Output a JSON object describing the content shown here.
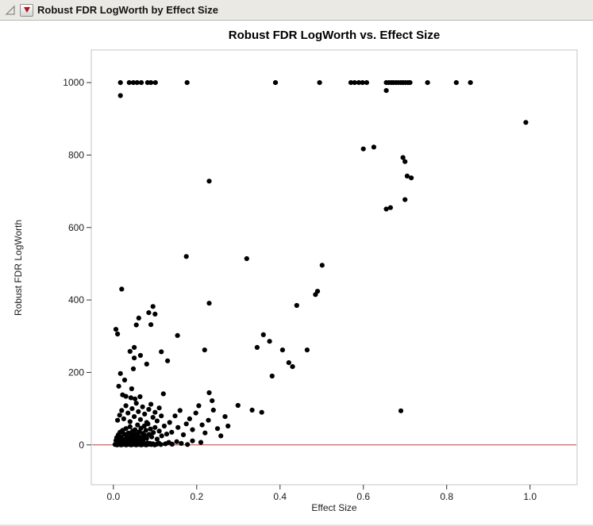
{
  "header": {
    "title": "Robust FDR LogWorth by Effect Size"
  },
  "icons": {
    "outline_open": "gray-open-triangle",
    "disclosure": "red-triangle-down"
  },
  "chart_data": {
    "type": "scatter",
    "title": "Robust FDR LogWorth vs. Effect Size",
    "xlabel": "Effect Size",
    "ylabel": "Robust FDR LogWorth",
    "xlim": [
      -0.053,
      1.113
    ],
    "ylim": [
      -110,
      1090
    ],
    "grid": false,
    "legend": null,
    "point_color": "#000000",
    "frame_color": "#c6c6c6",
    "ref_line": {
      "y": 0,
      "color": "#cc3832"
    },
    "x_ticks": [
      0,
      0.2,
      0.4,
      0.6,
      0.8,
      1.0
    ],
    "x_tick_labels": [
      "0.0",
      "0.2",
      "0.4",
      "0.6",
      "0.8",
      "1.0"
    ],
    "y_ticks": [
      0,
      200,
      400,
      600,
      800,
      1000
    ],
    "y_tick_labels": [
      "0",
      "200",
      "400",
      "600",
      "800",
      "1000"
    ],
    "points": [
      [
        0.017,
        1000
      ],
      [
        0.038,
        1000
      ],
      [
        0.048,
        1000
      ],
      [
        0.057,
        1000
      ],
      [
        0.067,
        1000
      ],
      [
        0.082,
        1000
      ],
      [
        0.09,
        1000
      ],
      [
        0.101,
        1000
      ],
      [
        0.177,
        1000
      ],
      [
        0.389,
        1000
      ],
      [
        0.495,
        1000
      ],
      [
        0.57,
        1000
      ],
      [
        0.579,
        1000
      ],
      [
        0.589,
        1000
      ],
      [
        0.598,
        1000
      ],
      [
        0.608,
        1000
      ],
      [
        0.655,
        1000
      ],
      [
        0.661,
        1000
      ],
      [
        0.667,
        1000
      ],
      [
        0.672,
        1000
      ],
      [
        0.678,
        1000
      ],
      [
        0.684,
        1000
      ],
      [
        0.69,
        1000
      ],
      [
        0.695,
        1000
      ],
      [
        0.701,
        1000
      ],
      [
        0.707,
        1000
      ],
      [
        0.712,
        1000
      ],
      [
        0.754,
        1000
      ],
      [
        0.823,
        1000
      ],
      [
        0.857,
        1000
      ],
      [
        0.017,
        964
      ],
      [
        0.655,
        978
      ],
      [
        0.99,
        890
      ],
      [
        0.6,
        817
      ],
      [
        0.625,
        822
      ],
      [
        0.695,
        793
      ],
      [
        0.7,
        782
      ],
      [
        0.705,
        742
      ],
      [
        0.715,
        737
      ],
      [
        0.23,
        728
      ],
      [
        0.7,
        677
      ],
      [
        0.655,
        651
      ],
      [
        0.665,
        655
      ],
      [
        0.175,
        520
      ],
      [
        0.32,
        514
      ],
      [
        0.501,
        496
      ],
      [
        0.02,
        430
      ],
      [
        0.49,
        424
      ],
      [
        0.485,
        415
      ],
      [
        0.44,
        385
      ],
      [
        0.23,
        391
      ],
      [
        0.095,
        382
      ],
      [
        0.085,
        365
      ],
      [
        0.1,
        361
      ],
      [
        0.061,
        350
      ],
      [
        0.055,
        331
      ],
      [
        0.006,
        319
      ],
      [
        0.01,
        306
      ],
      [
        0.154,
        302
      ],
      [
        0.36,
        304
      ],
      [
        0.09,
        332
      ],
      [
        0.05,
        269
      ],
      [
        0.04,
        258
      ],
      [
        0.219,
        262
      ],
      [
        0.406,
        262
      ],
      [
        0.465,
        262
      ],
      [
        0.05,
        240
      ],
      [
        0.13,
        232
      ],
      [
        0.421,
        227
      ],
      [
        0.43,
        216
      ],
      [
        0.345,
        269
      ],
      [
        0.375,
        286
      ],
      [
        0.381,
        190
      ],
      [
        0.065,
        247
      ],
      [
        0.115,
        257
      ],
      [
        0.013,
        162
      ],
      [
        0.027,
        179
      ],
      [
        0.017,
        197
      ],
      [
        0.044,
        155
      ],
      [
        0.08,
        223
      ],
      [
        0.048,
        210
      ],
      [
        0.022,
        138
      ],
      [
        0.03,
        134
      ],
      [
        0.042,
        130
      ],
      [
        0.052,
        127
      ],
      [
        0.064,
        133
      ],
      [
        0.12,
        141
      ],
      [
        0.23,
        144
      ],
      [
        0.237,
        122
      ],
      [
        0.299,
        109
      ],
      [
        0.333,
        96
      ],
      [
        0.356,
        90
      ],
      [
        0.69,
        94
      ],
      [
        0.135,
        62
      ],
      [
        0.14,
        35
      ],
      [
        0.148,
        80
      ],
      [
        0.155,
        48
      ],
      [
        0.16,
        95
      ],
      [
        0.168,
        28
      ],
      [
        0.175,
        58
      ],
      [
        0.183,
        72
      ],
      [
        0.19,
        42
      ],
      [
        0.198,
        88
      ],
      [
        0.205,
        108
      ],
      [
        0.213,
        55
      ],
      [
        0.22,
        33
      ],
      [
        0.228,
        68
      ],
      [
        0.24,
        96
      ],
      [
        0.25,
        45
      ],
      [
        0.258,
        25
      ],
      [
        0.268,
        78
      ],
      [
        0.275,
        52
      ],
      [
        0.01,
        68
      ],
      [
        0.015,
        82
      ],
      [
        0.02,
        95
      ],
      [
        0.025,
        72
      ],
      [
        0.03,
        108
      ],
      [
        0.035,
        88
      ],
      [
        0.04,
        64
      ],
      [
        0.045,
        100
      ],
      [
        0.05,
        78
      ],
      [
        0.055,
        115
      ],
      [
        0.06,
        92
      ],
      [
        0.065,
        70
      ],
      [
        0.07,
        105
      ],
      [
        0.075,
        85
      ],
      [
        0.08,
        62
      ],
      [
        0.085,
        98
      ],
      [
        0.09,
        112
      ],
      [
        0.095,
        76
      ],
      [
        0.1,
        90
      ],
      [
        0.105,
        66
      ],
      [
        0.11,
        102
      ],
      [
        0.115,
        80
      ],
      [
        0.006,
        12
      ],
      [
        0.008,
        20
      ],
      [
        0.01,
        15
      ],
      [
        0.012,
        28
      ],
      [
        0.014,
        10
      ],
      [
        0.016,
        35
      ],
      [
        0.018,
        22
      ],
      [
        0.02,
        18
      ],
      [
        0.022,
        40
      ],
      [
        0.024,
        12
      ],
      [
        0.026,
        30
      ],
      [
        0.028,
        16
      ],
      [
        0.03,
        45
      ],
      [
        0.032,
        25
      ],
      [
        0.034,
        11
      ],
      [
        0.036,
        33
      ],
      [
        0.038,
        19
      ],
      [
        0.04,
        50
      ],
      [
        0.042,
        14
      ],
      [
        0.044,
        27
      ],
      [
        0.046,
        38
      ],
      [
        0.048,
        21
      ],
      [
        0.05,
        13
      ],
      [
        0.052,
        42
      ],
      [
        0.054,
        30
      ],
      [
        0.056,
        17
      ],
      [
        0.058,
        55
      ],
      [
        0.06,
        24
      ],
      [
        0.062,
        36
      ],
      [
        0.064,
        12
      ],
      [
        0.066,
        46
      ],
      [
        0.068,
        20
      ],
      [
        0.07,
        32
      ],
      [
        0.072,
        15
      ],
      [
        0.074,
        52
      ],
      [
        0.076,
        26
      ],
      [
        0.078,
        40
      ],
      [
        0.08,
        18
      ],
      [
        0.083,
        58
      ],
      [
        0.086,
        29
      ],
      [
        0.089,
        44
      ],
      [
        0.092,
        22
      ],
      [
        0.096,
        34
      ],
      [
        0.1,
        48
      ],
      [
        0.105,
        16
      ],
      [
        0.11,
        38
      ],
      [
        0.116,
        25
      ],
      [
        0.122,
        52
      ],
      [
        0.128,
        30
      ],
      [
        0.004,
        1
      ],
      [
        0.007,
        3
      ],
      [
        0.009,
        0
      ],
      [
        0.011,
        2
      ],
      [
        0.013,
        5
      ],
      [
        0.015,
        1
      ],
      [
        0.017,
        3
      ],
      [
        0.019,
        0
      ],
      [
        0.021,
        4
      ],
      [
        0.023,
        2
      ],
      [
        0.025,
        6
      ],
      [
        0.027,
        1
      ],
      [
        0.029,
        3
      ],
      [
        0.031,
        0
      ],
      [
        0.033,
        5
      ],
      [
        0.035,
        2
      ],
      [
        0.037,
        4
      ],
      [
        0.039,
        1
      ],
      [
        0.041,
        3
      ],
      [
        0.043,
        0
      ],
      [
        0.045,
        6
      ],
      [
        0.047,
        2
      ],
      [
        0.049,
        4
      ],
      [
        0.051,
        1
      ],
      [
        0.053,
        3
      ],
      [
        0.055,
        0
      ],
      [
        0.057,
        5
      ],
      [
        0.059,
        2
      ],
      [
        0.061,
        4
      ],
      [
        0.063,
        1
      ],
      [
        0.065,
        3
      ],
      [
        0.067,
        0
      ],
      [
        0.069,
        6
      ],
      [
        0.071,
        2
      ],
      [
        0.073,
        4
      ],
      [
        0.075,
        1
      ],
      [
        0.077,
        3
      ],
      [
        0.079,
        0
      ],
      [
        0.082,
        5
      ],
      [
        0.085,
        2
      ],
      [
        0.088,
        4
      ],
      [
        0.091,
        1
      ],
      [
        0.095,
        3
      ],
      [
        0.099,
        0
      ],
      [
        0.104,
        2
      ],
      [
        0.109,
        5
      ],
      [
        0.114,
        1
      ],
      [
        0.125,
        3
      ],
      [
        0.133,
        7
      ],
      [
        0.141,
        2
      ],
      [
        0.152,
        9
      ],
      [
        0.163,
        4
      ],
      [
        0.178,
        1
      ],
      [
        0.19,
        11
      ],
      [
        0.21,
        7
      ]
    ]
  }
}
